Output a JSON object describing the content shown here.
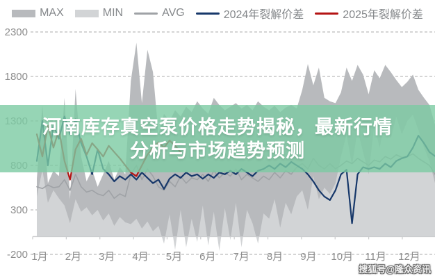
{
  "page": {
    "background": "#ffffff"
  },
  "legend": {
    "items": [
      {
        "name": "max",
        "swatch": "rect",
        "color": "#b8babd",
        "label": "MAX"
      },
      {
        "name": "min",
        "swatch": "rect",
        "color": "#d2d4d6",
        "label": "MIN"
      },
      {
        "name": "avg",
        "swatch": "line",
        "color": "#9fa2a6",
        "label": "AVG"
      },
      {
        "name": "y2024",
        "swatch": "line",
        "color": "#17386a",
        "label": "2024年裂解价差"
      },
      {
        "name": "y2025",
        "swatch": "line",
        "color": "#b41414",
        "label": "2025年裂解价差"
      }
    ]
  },
  "overlay": {
    "line1": "河南库存真空泵价格走势揭秘，最新行情",
    "line2": "分析与市场趋势预测",
    "background_rgba": "rgba(124,203,162,0.80)",
    "text_color": "#ffffff"
  },
  "watermark": {
    "text": "搜狐号@隆众资讯"
  },
  "chart_data": {
    "type": "area",
    "title": "",
    "xlabel": "",
    "ylabel": "",
    "grid": "dashed-horizontal",
    "legend_position": "top",
    "ylim": [
      -300,
      2400
    ],
    "baseline": 0,
    "y_ticks": [
      2300,
      1800,
      1300,
      800,
      300,
      -200
    ],
    "x_ticks": [
      "1月",
      "2月",
      "3月",
      "4月",
      "5月",
      "6月",
      "7月",
      "8月",
      "9月",
      "10月",
      "11月",
      "12月"
    ],
    "points_per_year": 73,
    "axis_text_color": "#8c8c8c",
    "grid_color": "#ababab",
    "axis_line_color": "#c9cacc",
    "series": [
      {
        "name": "MAX",
        "type": "area",
        "color": "#b8babd",
        "values": [
          650,
          1480,
          600,
          740,
          680,
          1560,
          420,
          1660,
          900,
          620,
          750,
          560,
          700,
          850,
          640,
          780,
          700,
          1750,
          2180,
          1500,
          2100,
          1850,
          1150,
          1380,
          1300,
          1420,
          1350,
          1460,
          1400,
          1520,
          1440,
          1380,
          1560,
          1480,
          1420,
          1460,
          1500,
          1440,
          1480,
          1420,
          1520,
          1460,
          1420,
          1470,
          1400,
          1450,
          1480,
          1440,
          1650,
          1940,
          1700,
          1900,
          1560,
          1520,
          1500,
          1620,
          1900,
          1750,
          1930,
          1820,
          1600,
          1870,
          1780,
          1930,
          1850,
          1760,
          1680,
          1740,
          1820,
          1650,
          1560,
          1480,
          1260
        ]
      },
      {
        "name": "MIN",
        "type": "area",
        "color": "#d2d4d6",
        "values": [
          450,
          750,
          380,
          520,
          430,
          350,
          150,
          420,
          280,
          330,
          240,
          300,
          180,
          260,
          120,
          220,
          160,
          140,
          200,
          90,
          170,
          60,
          120,
          -80,
          250,
          -150,
          300,
          -120,
          200,
          -60,
          350,
          -100,
          280,
          -160,
          320,
          -40,
          380,
          -120,
          300,
          150,
          -80,
          260,
          200,
          420,
          100,
          380,
          250,
          450,
          520,
          300,
          680,
          420,
          550,
          480,
          600,
          900,
          1150,
          800,
          1200,
          950,
          700,
          1250,
          1000,
          1300,
          1100,
          1350,
          1150,
          1300,
          1370,
          1200,
          1000,
          850,
          600
        ]
      },
      {
        "name": "AVG",
        "type": "line",
        "color": "#9fa2a6",
        "width": 1.6,
        "values": [
          560,
          540,
          580,
          550,
          560,
          640,
          520,
          700,
          560,
          500,
          520,
          480,
          460,
          520,
          430,
          480,
          450,
          700,
          800,
          640,
          760,
          680,
          560,
          520,
          620,
          560,
          680,
          600,
          660,
          640,
          700,
          620,
          740,
          660,
          720,
          680,
          760,
          640,
          700,
          660,
          620,
          680,
          640,
          720,
          660,
          740,
          700,
          780,
          820,
          760,
          880,
          800,
          760,
          820,
          760,
          800,
          850,
          820,
          880,
          840,
          800,
          860,
          840,
          900,
          870,
          920,
          890,
          900,
          930,
          880,
          840,
          800,
          700
        ]
      },
      {
        "name": "2024年裂解价差",
        "type": "line",
        "color": "#17386a",
        "width": 2.2,
        "values": [
          850,
          1300,
          800,
          1250,
          1100,
          1350,
          1150,
          1320,
          1050,
          900,
          700,
          980,
          760,
          700,
          620,
          680,
          640,
          700,
          640,
          720,
          660,
          600,
          640,
          535,
          650,
          700,
          660,
          720,
          680,
          700,
          650,
          700,
          660,
          720,
          700,
          740,
          700,
          760,
          720,
          680,
          740,
          760,
          800,
          760,
          820,
          780,
          840,
          800,
          760,
          700,
          620,
          520,
          450,
          410,
          520,
          700,
          750,
          150,
          700,
          780,
          760,
          780,
          760,
          820,
          780,
          850,
          880,
          900,
          1000,
          1135,
          1050,
          950,
          905
        ]
      },
      {
        "name": "2025年裂解价差",
        "type": "line",
        "color": "#b41414",
        "width": 2.2,
        "values": [
          1150,
          900,
          1250,
          1000,
          1200,
          850,
          640,
          980,
          1100,
          920,
          1050,
          980,
          900,
          1020,
          950,
          880,
          800,
          720,
          680,
          800,
          920,
          1000,
          1060,
          1000,
          1080,
          1020,
          950
        ]
      }
    ]
  }
}
